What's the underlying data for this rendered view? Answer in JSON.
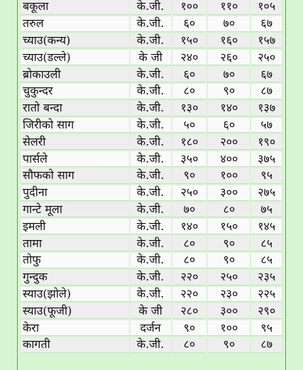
{
  "rows": [
    {
      "name": "बकूला",
      "unit": "के.जी.",
      "min": "१००",
      "max": "११०",
      "avg": "१०५"
    },
    {
      "name": "तरुल",
      "unit": "के.जी.",
      "min": "६०",
      "max": "७०",
      "avg": "६७"
    },
    {
      "name": "च्याउ(कन्य)",
      "unit": "के.जी.",
      "min": "१५०",
      "max": "१६०",
      "avg": "१५७"
    },
    {
      "name": "च्याउ(डल्ले)",
      "unit": "के जी",
      "min": "२४०",
      "max": "२६०",
      "avg": "२५०"
    },
    {
      "name": "ब्रोकाउली",
      "unit": "के.जी.",
      "min": "६०",
      "max": "७०",
      "avg": "६७"
    },
    {
      "name": "चुकुन्दर",
      "unit": "के.जी.",
      "min": "८०",
      "max": "९०",
      "avg": "८७"
    },
    {
      "name": "रातो बन्दा",
      "unit": "के.जी.",
      "min": "१३०",
      "max": "१४०",
      "avg": "१३७"
    },
    {
      "name": "जिरीको साग",
      "unit": "के.जी.",
      "min": "५०",
      "max": "६०",
      "avg": "५७"
    },
    {
      "name": "सेलरी",
      "unit": "के.जी.",
      "min": "१८०",
      "max": "२००",
      "avg": "१९०"
    },
    {
      "name": "पार्सले",
      "unit": "के.जी.",
      "min": "३५०",
      "max": "४००",
      "avg": "३७५"
    },
    {
      "name": "सौफको साग",
      "unit": "के.जी.",
      "min": "९०",
      "max": "१००",
      "avg": "९५"
    },
    {
      "name": "पुदीना",
      "unit": "के.जी.",
      "min": "२५०",
      "max": "३००",
      "avg": "२७५"
    },
    {
      "name": "गान्टे मूला",
      "unit": "के.जी.",
      "min": "७०",
      "max": "८०",
      "avg": "७५"
    },
    {
      "name": "इमली",
      "unit": "के.जी.",
      "min": "१४०",
      "max": "१५०",
      "avg": "१४५"
    },
    {
      "name": "तामा",
      "unit": "के.जी.",
      "min": "८०",
      "max": "९०",
      "avg": "८५"
    },
    {
      "name": "तोफु",
      "unit": "के.जी.",
      "min": "८०",
      "max": "९०",
      "avg": "८५"
    },
    {
      "name": "गुन्दुक",
      "unit": "के.जी.",
      "min": "२२०",
      "max": "२५०",
      "avg": "२३५"
    },
    {
      "name": "स्याउ(झोले)",
      "unit": "के.जी.",
      "min": "२२०",
      "max": "२३०",
      "avg": "२२५"
    },
    {
      "name": "स्याउ(फूजी)",
      "unit": "के जी",
      "min": "२८०",
      "max": "३००",
      "avg": "२९०"
    },
    {
      "name": "केरा",
      "unit": "दर्जन",
      "min": "९०",
      "max": "१००",
      "avg": "९५"
    },
    {
      "name": "कागती",
      "unit": "के.जी.",
      "min": "८०",
      "max": "९०",
      "avg": "८७"
    }
  ]
}
